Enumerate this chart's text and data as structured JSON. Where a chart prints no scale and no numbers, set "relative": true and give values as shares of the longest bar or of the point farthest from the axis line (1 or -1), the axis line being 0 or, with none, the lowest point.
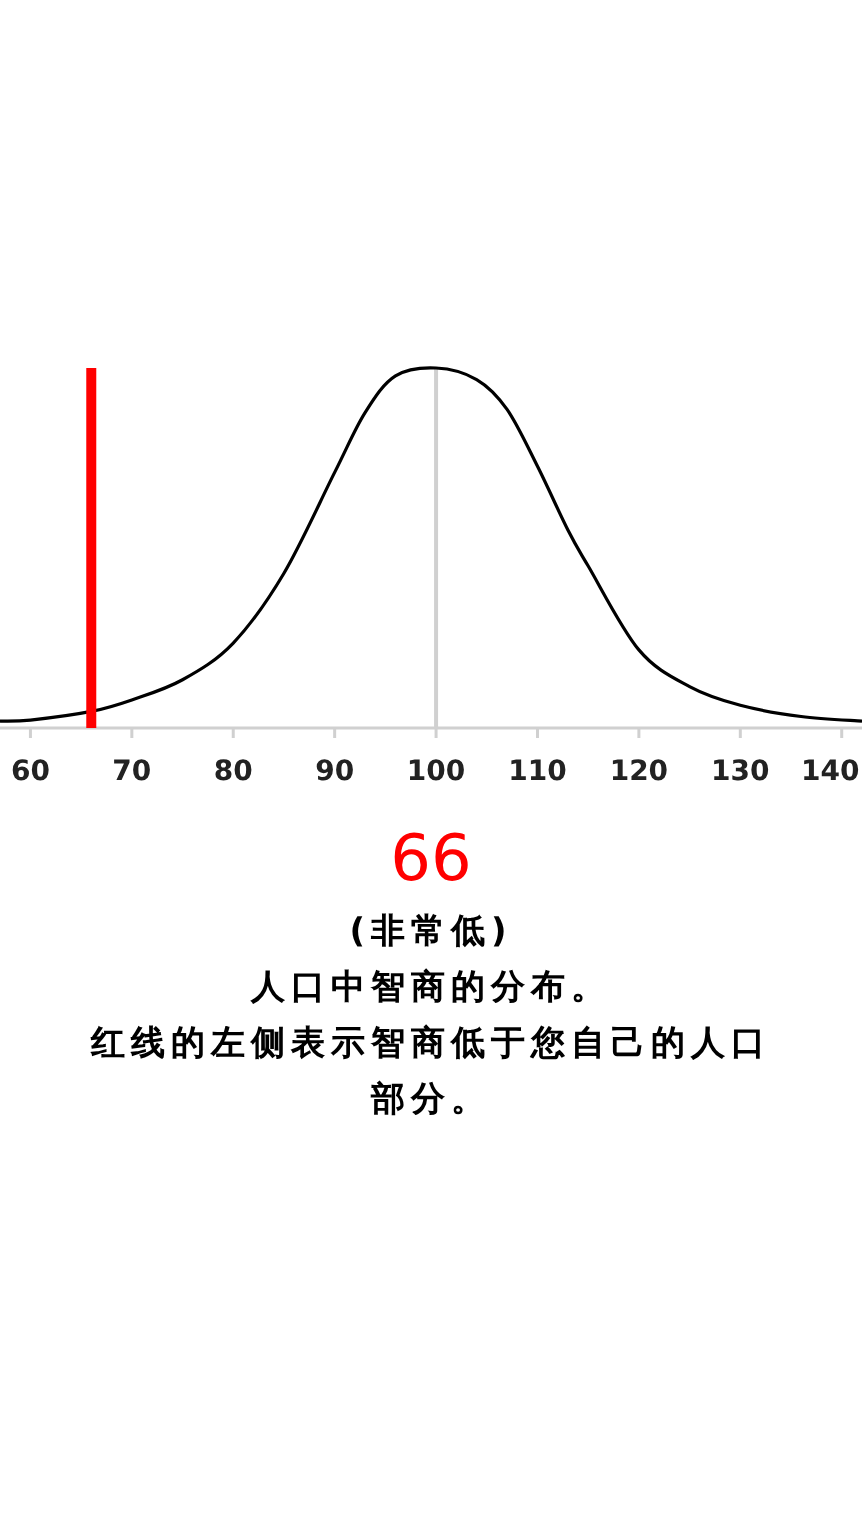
{
  "chart_data": {
    "type": "line",
    "relative": true,
    "x": [
      57,
      60,
      66,
      70,
      75,
      80,
      85,
      90,
      93,
      96,
      100,
      104,
      107,
      110,
      113,
      115,
      120,
      125,
      130,
      136,
      142
    ],
    "series": [
      {
        "color": "#000000",
        "values": [
          0.019,
          0.022,
          0.046,
          0.078,
          0.134,
          0.236,
          0.43,
          0.71,
          0.876,
          0.978,
          1,
          0.968,
          0.885,
          0.727,
          0.55,
          0.45,
          0.217,
          0.115,
          0.063,
          0.032,
          0.019
        ]
      }
    ],
    "xlim": [
      57,
      142
    ],
    "xticks": [
      60,
      70,
      80,
      90,
      100,
      110,
      120,
      130,
      140
    ],
    "ref_lines": [
      {
        "axis": "x",
        "value": 66,
        "label": "66",
        "color": "#ff0000"
      },
      {
        "axis": "x",
        "value": 100,
        "color": "#d0d0d0"
      }
    ],
    "annotations": [
      "(非常低)",
      "人口中智商的分布。",
      "红线的左侧表示智商低于您自己的人口部分。"
    ],
    "grid": false
  }
}
